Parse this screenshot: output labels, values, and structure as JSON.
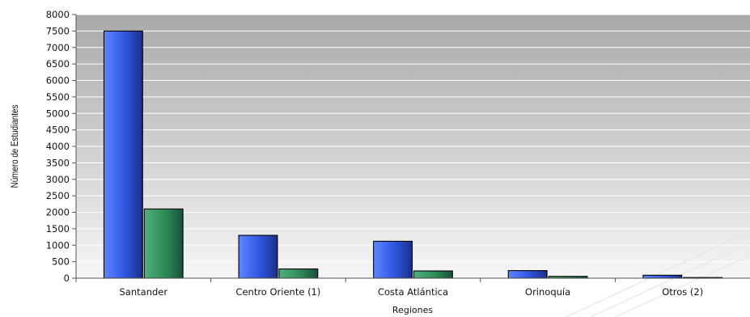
{
  "chart_data": {
    "type": "bar",
    "categories": [
      "Santander",
      "Centro Oriente (1)",
      "Costa Atlántica",
      "Orinoquía",
      "Otros (2)"
    ],
    "series": [
      {
        "values": [
          7500,
          1300,
          1120,
          230,
          90
        ],
        "color": "#2f55e0"
      },
      {
        "values": [
          2100,
          280,
          220,
          55,
          20
        ],
        "color": "#2e8b57"
      }
    ],
    "title": "",
    "xlabel": "Regiones",
    "ylabel": "Número de Estudiantes",
    "ylim": [
      0,
      8000
    ],
    "yticks": [
      "0",
      "500",
      "1000",
      "1500",
      "2000",
      "2500",
      "3000",
      "3500",
      "4000",
      "4500",
      "5000",
      "5500",
      "6000",
      "6500",
      "7000",
      "7500",
      "8000"
    ],
    "grid": true,
    "legend": "none"
  }
}
